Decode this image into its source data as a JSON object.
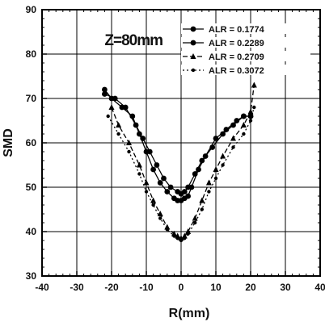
{
  "chart_data": {
    "type": "scatter",
    "annotation": "Z=80mm",
    "xlabel": "R(mm)",
    "ylabel": "SMD",
    "xlim": [
      -40,
      40
    ],
    "ylim": [
      30,
      90
    ],
    "xticks": [
      -40,
      -30,
      -20,
      -10,
      0,
      10,
      20,
      30,
      40
    ],
    "yticks": [
      30,
      40,
      50,
      60,
      70,
      80,
      90
    ],
    "grid": true,
    "legend_position": "top-right",
    "series": [
      {
        "name": "ALR = 0.1774",
        "style": "solid",
        "marker": "circle",
        "points": [
          [
            -22,
            72
          ],
          [
            -20,
            70
          ],
          [
            -17,
            68
          ],
          [
            -14,
            66
          ],
          [
            -12,
            62
          ],
          [
            -10,
            58
          ],
          [
            -8,
            54
          ],
          [
            -6,
            51
          ],
          [
            -4,
            49
          ],
          [
            -2,
            47.5
          ],
          [
            -1,
            47
          ],
          [
            0,
            47
          ],
          [
            1,
            47.5
          ],
          [
            2,
            48
          ],
          [
            3,
            50
          ],
          [
            5,
            54
          ],
          [
            7,
            57
          ],
          [
            10,
            61
          ],
          [
            13,
            63
          ],
          [
            16,
            65
          ],
          [
            18,
            66
          ],
          [
            20,
            66
          ]
        ]
      },
      {
        "name": "ALR = 0.2289",
        "style": "solid",
        "marker": "circle",
        "points": [
          [
            -22,
            71
          ],
          [
            -19,
            70
          ],
          [
            -16,
            68
          ],
          [
            -13,
            64
          ],
          [
            -11,
            61
          ],
          [
            -9,
            58
          ],
          [
            -7,
            55
          ],
          [
            -5,
            52
          ],
          [
            -3,
            50
          ],
          [
            -1,
            49
          ],
          [
            0,
            48.5
          ],
          [
            1,
            49
          ],
          [
            2,
            50
          ],
          [
            4,
            53
          ],
          [
            6,
            56
          ],
          [
            9,
            59
          ],
          [
            12,
            62
          ],
          [
            15,
            64
          ],
          [
            18,
            66
          ],
          [
            20,
            66
          ]
        ]
      },
      {
        "name": "ALR = 0.2709",
        "style": "dashed",
        "marker": "triangle",
        "points": [
          [
            -20,
            68
          ],
          [
            -18,
            64
          ],
          [
            -15,
            60
          ],
          [
            -12,
            55
          ],
          [
            -10,
            51
          ],
          [
            -8,
            47
          ],
          [
            -6,
            44
          ],
          [
            -4,
            41
          ],
          [
            -2,
            39.5
          ],
          [
            -1,
            39
          ],
          [
            0,
            38.5
          ],
          [
            1,
            39
          ],
          [
            2,
            40
          ],
          [
            4,
            43
          ],
          [
            6,
            47
          ],
          [
            8,
            51
          ],
          [
            10,
            54
          ],
          [
            12,
            57
          ],
          [
            15,
            61
          ],
          [
            18,
            64
          ],
          [
            20,
            67
          ],
          [
            21,
            73
          ]
        ]
      },
      {
        "name": "ALR = 0.3072",
        "style": "dotted",
        "marker": "dot",
        "points": [
          [
            -21,
            66
          ],
          [
            -18,
            62
          ],
          [
            -15,
            58
          ],
          [
            -12,
            53
          ],
          [
            -10,
            49
          ],
          [
            -8,
            46
          ],
          [
            -6,
            43
          ],
          [
            -4,
            40.5
          ],
          [
            -2,
            39
          ],
          [
            -1,
            38.5
          ],
          [
            0,
            38
          ],
          [
            1,
            38.5
          ],
          [
            2,
            39.5
          ],
          [
            4,
            42
          ],
          [
            6,
            45
          ],
          [
            8,
            49
          ],
          [
            10,
            52
          ],
          [
            12,
            55
          ],
          [
            15,
            59
          ],
          [
            18,
            62
          ],
          [
            20,
            65
          ],
          [
            21,
            68
          ]
        ]
      }
    ]
  }
}
